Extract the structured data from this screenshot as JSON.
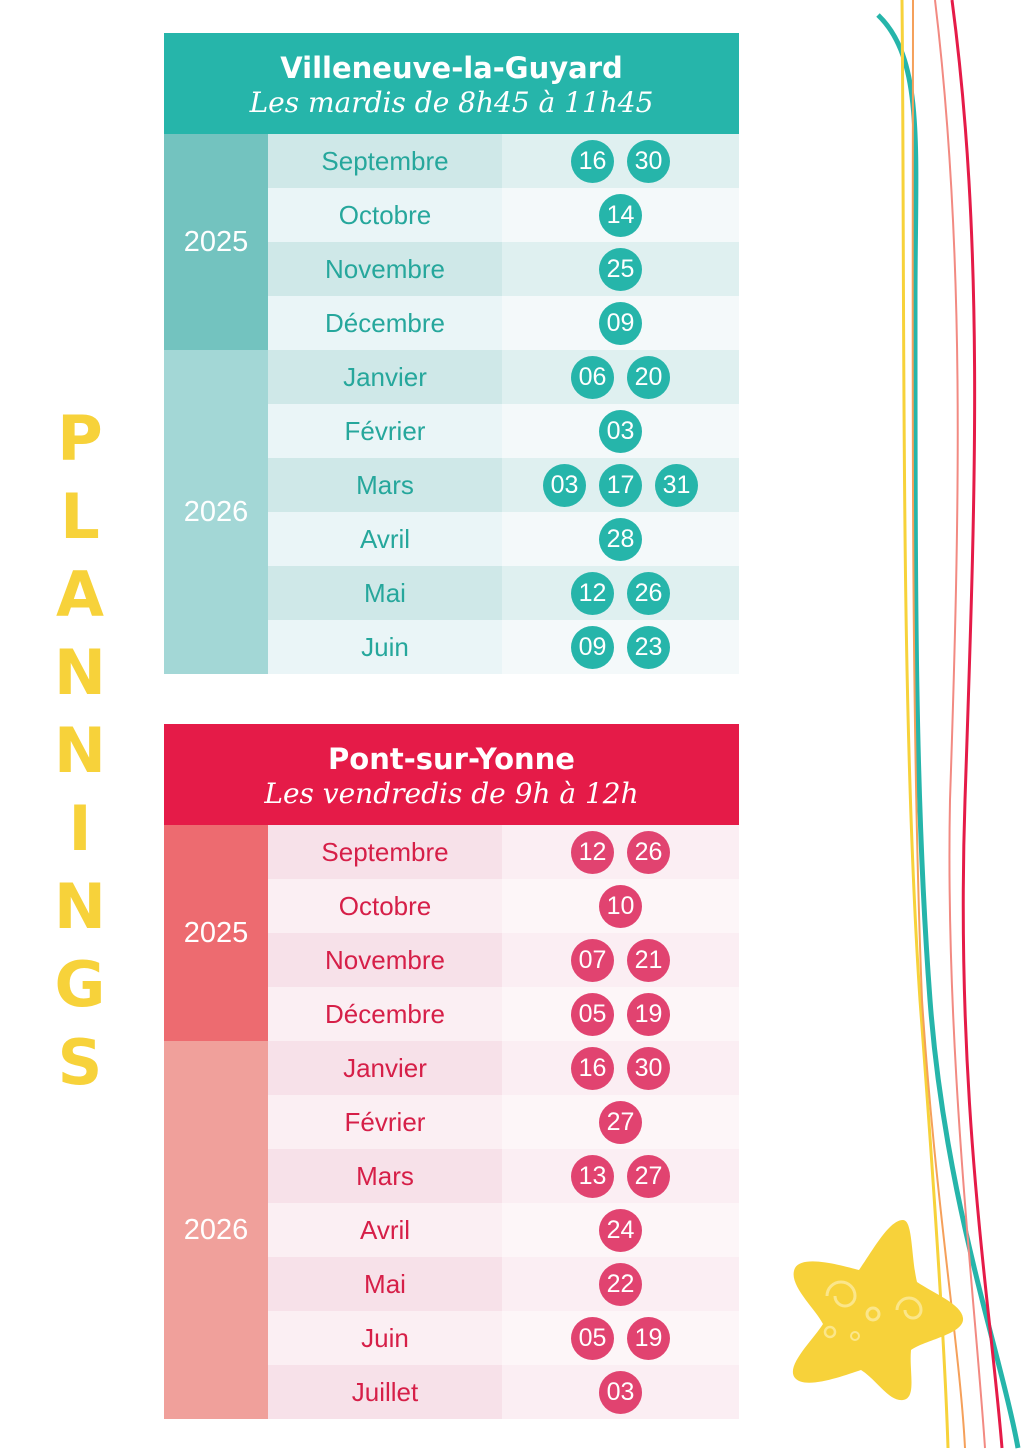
{
  "side_title": "PLANNINGS",
  "colors": {
    "teal": "#26b5aa",
    "red": "#e51b48",
    "yellow": "#f7d23a"
  },
  "schedules": [
    {
      "town": "Villeneuve-la-Guyard",
      "hours": "Les mardis de 8h45 à 11h45",
      "years": [
        {
          "year": "2025",
          "months": [
            {
              "month": "Septembre",
              "dates": [
                "16",
                "30"
              ]
            },
            {
              "month": "Octobre",
              "dates": [
                "14"
              ]
            },
            {
              "month": "Novembre",
              "dates": [
                "25"
              ]
            },
            {
              "month": "Décembre",
              "dates": [
                "09"
              ]
            }
          ]
        },
        {
          "year": "2026",
          "months": [
            {
              "month": "Janvier",
              "dates": [
                "06",
                "20"
              ]
            },
            {
              "month": "Février",
              "dates": [
                "03"
              ]
            },
            {
              "month": "Mars",
              "dates": [
                "03",
                "17",
                "31"
              ]
            },
            {
              "month": "Avril",
              "dates": [
                "28"
              ]
            },
            {
              "month": "Mai",
              "dates": [
                "12",
                "26"
              ]
            },
            {
              "month": "Juin",
              "dates": [
                "09",
                "23"
              ]
            }
          ]
        }
      ]
    },
    {
      "town": "Pont-sur-Yonne",
      "hours": "Les vendredis de 9h à 12h",
      "years": [
        {
          "year": "2025",
          "months": [
            {
              "month": "Septembre",
              "dates": [
                "12",
                "26"
              ]
            },
            {
              "month": "Octobre",
              "dates": [
                "10"
              ]
            },
            {
              "month": "Novembre",
              "dates": [
                "07",
                "21"
              ]
            },
            {
              "month": "Décembre",
              "dates": [
                "05",
                "19"
              ]
            }
          ]
        },
        {
          "year": "2026",
          "months": [
            {
              "month": "Janvier",
              "dates": [
                "16",
                "30"
              ]
            },
            {
              "month": "Février",
              "dates": [
                "27"
              ]
            },
            {
              "month": "Mars",
              "dates": [
                "13",
                "27"
              ]
            },
            {
              "month": "Avril",
              "dates": [
                "24"
              ]
            },
            {
              "month": "Mai",
              "dates": [
                "22"
              ]
            },
            {
              "month": "Juin",
              "dates": [
                "05",
                "19"
              ]
            },
            {
              "month": "Juillet",
              "dates": [
                "03"
              ]
            }
          ]
        }
      ]
    }
  ]
}
